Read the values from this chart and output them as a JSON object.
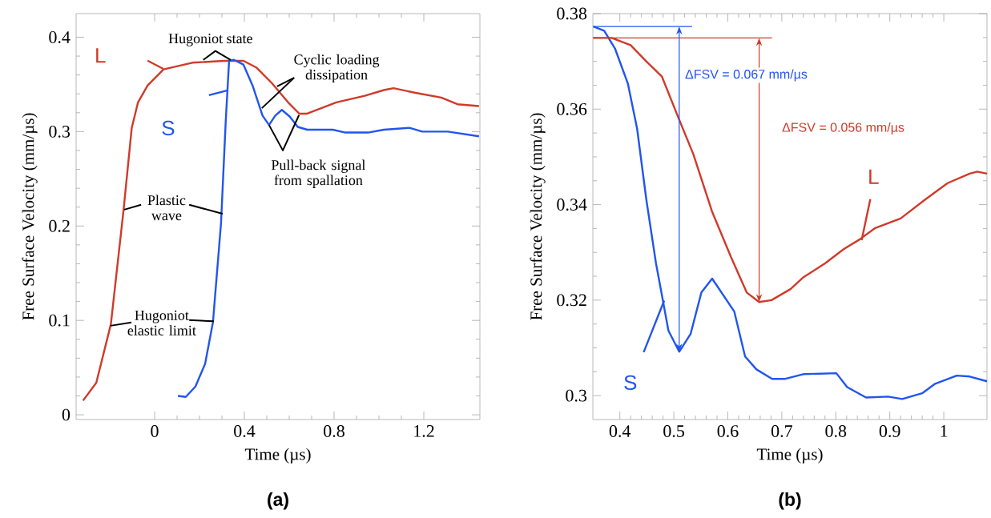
{
  "chart_data": [
    {
      "type": "line",
      "title": "(a)",
      "xlabel": "Time (µs)",
      "ylabel": "Free Surface Velocity (mm/µs)",
      "xlim": [
        -0.35,
        1.45
      ],
      "ylim": [
        -0.005,
        0.425
      ],
      "xticks": [
        0,
        0.4,
        0.8,
        1.2
      ],
      "yticks": [
        0,
        0.1,
        0.2,
        0.3,
        0.4
      ],
      "series": [
        {
          "name": "L",
          "color": "#d03a2a",
          "x": [
            -0.319,
            -0.26,
            -0.195,
            -0.138,
            -0.102,
            -0.074,
            -0.031,
            0.04,
            0.168,
            0.31,
            0.396,
            0.453,
            0.524,
            0.595,
            0.645,
            0.68,
            0.81,
            0.937,
            1.022,
            1.065,
            1.164,
            1.278,
            1.35,
            1.446
          ],
          "values": [
            0.015,
            0.034,
            0.096,
            0.218,
            0.304,
            0.331,
            0.349,
            0.366,
            0.373,
            0.375,
            0.375,
            0.368,
            0.351,
            0.331,
            0.319,
            0.319,
            0.331,
            0.338,
            0.344,
            0.346,
            0.341,
            0.336,
            0.329,
            0.327
          ]
        },
        {
          "name": "S",
          "color": "#2255ee",
          "x": [
            0.104,
            0.139,
            0.182,
            0.225,
            0.26,
            0.296,
            0.317,
            0.332,
            0.353,
            0.396,
            0.438,
            0.481,
            0.51,
            0.538,
            0.567,
            0.602,
            0.638,
            0.68,
            0.794,
            0.851,
            0.951,
            1.022,
            1.136,
            1.193,
            1.307,
            1.446
          ],
          "values": [
            0.02,
            0.019,
            0.03,
            0.054,
            0.098,
            0.203,
            0.311,
            0.375,
            0.376,
            0.371,
            0.348,
            0.317,
            0.307,
            0.317,
            0.323,
            0.316,
            0.305,
            0.302,
            0.302,
            0.299,
            0.299,
            0.302,
            0.304,
            0.3,
            0.3,
            0.295
          ]
        }
      ],
      "annotations": [
        {
          "text": "Hugoniot state",
          "x": 0.339,
          "y": 0.376
        },
        {
          "text": "Cyclic loading dissipation",
          "x": 0.546,
          "y": 0.348
        },
        {
          "text": "Pull-back signal from spallation",
          "x": 0.51,
          "y": 0.307
        },
        {
          "text": "Plastic wave",
          "x": 0.303,
          "y": 0.213
        },
        {
          "text": "Hugoniot elastic limit",
          "x": 0.264,
          "y": 0.099
        }
      ]
    },
    {
      "type": "line",
      "title": "(b)",
      "xlabel": "Time (µs)",
      "ylabel": "Free Surface Velocity (mm/µs)",
      "xlim": [
        0.35,
        1.08
      ],
      "ylim": [
        0.295,
        0.38
      ],
      "xticks": [
        0.4,
        0.5,
        0.6,
        0.7,
        0.8,
        0.9,
        1
      ],
      "yticks": [
        0.3,
        0.32,
        0.34,
        0.36,
        0.38
      ],
      "series": [
        {
          "name": "S",
          "color": "#2255ee",
          "x": [
            0.351,
            0.371,
            0.391,
            0.415,
            0.432,
            0.449,
            0.467,
            0.478,
            0.49,
            0.51,
            0.531,
            0.551,
            0.571,
            0.612,
            0.632,
            0.653,
            0.682,
            0.705,
            0.74,
            0.801,
            0.821,
            0.856,
            0.897,
            0.923,
            0.96,
            0.984,
            1.024,
            1.048,
            1.08
          ],
          "values": [
            0.3773,
            0.3764,
            0.3727,
            0.3653,
            0.3559,
            0.3411,
            0.3277,
            0.321,
            0.3136,
            0.3092,
            0.3129,
            0.3216,
            0.3245,
            0.3176,
            0.3082,
            0.3055,
            0.3035,
            0.3035,
            0.3045,
            0.3047,
            0.3018,
            0.2996,
            0.2998,
            0.2993,
            0.3005,
            0.3025,
            0.3042,
            0.304,
            0.303
          ]
        },
        {
          "name": "L",
          "color": "#d03a2a",
          "x": [
            0.351,
            0.385,
            0.42,
            0.449,
            0.478,
            0.507,
            0.536,
            0.571,
            0.606,
            0.635,
            0.658,
            0.681,
            0.716,
            0.739,
            0.78,
            0.815,
            0.844,
            0.873,
            0.92,
            0.966,
            1.007,
            1.048,
            1.062,
            1.08
          ],
          "values": [
            0.3749,
            0.3749,
            0.3734,
            0.37,
            0.3668,
            0.3586,
            0.3506,
            0.3385,
            0.329,
            0.3216,
            0.3196,
            0.32,
            0.3223,
            0.3247,
            0.3277,
            0.3307,
            0.3327,
            0.3351,
            0.3371,
            0.3411,
            0.3445,
            0.3465,
            0.3469,
            0.3465
          ]
        }
      ],
      "annotations": [
        "ΔFSV = 0.067 mm/µs",
        "ΔFSV = 0.056 mm/µs"
      ],
      "ref_lines": [
        {
          "axis": "y",
          "value": 0.3773,
          "color": "#2255ee"
        },
        {
          "axis": "y",
          "value": 0.3749,
          "color": "#d03a2a"
        }
      ]
    }
  ]
}
